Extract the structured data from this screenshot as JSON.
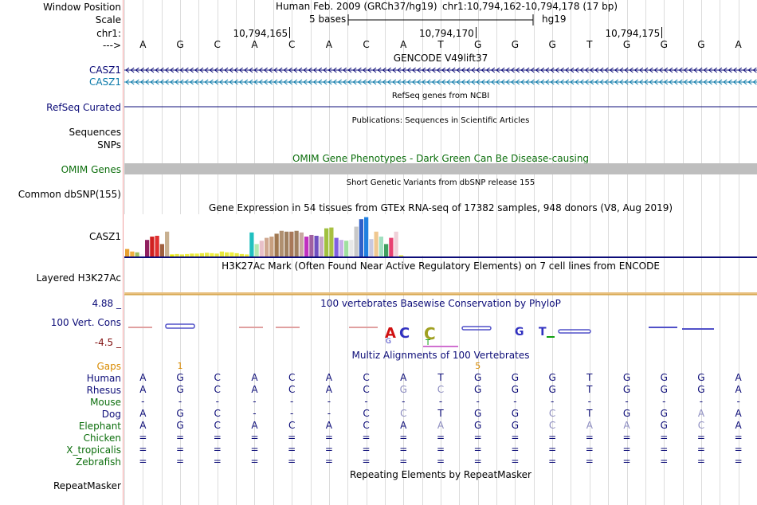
{
  "header": {
    "window_position_label": "Window Position",
    "assembly_text": "Human Feb. 2009 (GRCh37/hg19)",
    "position_text": "chr1:10,794,162-10,794,178 (17 bp)",
    "scale_label": "Scale",
    "scale_text": "5 bases",
    "scale_db": "hg19",
    "chrom_label": "chr1:",
    "arrow_label": "--->",
    "ticks": [
      "10,794,165",
      "10,794,170",
      "10,794,175"
    ],
    "bases": [
      "A",
      "G",
      "C",
      "A",
      "C",
      "A",
      "C",
      "A",
      "T",
      "G",
      "G",
      "G",
      "T",
      "G",
      "G",
      "G",
      "A"
    ]
  },
  "gencode": {
    "title": "GENCODE V49lift37",
    "gene1": "CASZ1",
    "gene2": "CASZ1",
    "gene1_color": "#0c0c78",
    "gene2_color": "#0c7aaa"
  },
  "refseq": {
    "title": "RefSeq genes from NCBI",
    "label": "RefSeq Curated"
  },
  "publications": {
    "title": "Publications: Sequences in Scientific Articles",
    "label_line1": "Sequences",
    "label_line2": "SNPs"
  },
  "omim": {
    "title": "OMIM Gene Phenotypes - Dark Green Can Be Disease-causing",
    "label": "OMIM Genes"
  },
  "dbsnp": {
    "title": "Short Genetic Variants from dbSNP release 155",
    "label": "Common dbSNP(155)"
  },
  "gtex": {
    "title": "Gene Expression in 54 tissues from GTEx RNA-seq of 17382 samples, 948 donors (V8, Aug 2019)",
    "label": "CASZ1",
    "max_value": 100,
    "values": [
      18,
      12,
      10,
      6,
      40,
      48,
      50,
      30,
      60,
      5,
      6,
      5,
      6,
      7,
      7,
      8,
      9,
      8,
      7,
      12,
      10,
      10,
      8,
      6,
      5,
      58,
      30,
      38,
      45,
      48,
      55,
      62,
      60,
      60,
      62,
      58,
      48,
      52,
      50,
      48,
      68,
      70,
      45,
      40,
      38,
      40,
      72,
      90,
      95,
      42,
      60,
      48,
      30,
      45,
      60,
      3
    ],
    "colors": [
      "#e8a030",
      "#f0b040",
      "#a0c060",
      "#f5f5f5",
      "#902060",
      "#d02020",
      "#e03030",
      "#a06040",
      "#c8b090",
      "#e8e800",
      "#e8e840",
      "#e8e840",
      "#f0f040",
      "#e8e840",
      "#f0f040",
      "#e8e840",
      "#e8e840",
      "#f0f040",
      "#e8e840",
      "#e8e840",
      "#e8e840",
      "#f0f040",
      "#e8e840",
      "#e8e840",
      "#f0f040",
      "#20c0c0",
      "#b0e8b0",
      "#e8c0c8",
      "#d0a890",
      "#c8a080",
      "#a07850",
      "#b09070",
      "#a08060",
      "#a87858",
      "#a08060",
      "#c8a8a0",
      "#c030c0",
      "#a060a0",
      "#7050c0",
      "#c8a8c8",
      "#a0c040",
      "#a8c040",
      "#8060e0",
      "#c8b0e8",
      "#a0e0a0",
      "#e8e8e8",
      "#c8c8c8",
      "#3060c8",
      "#2080e0",
      "#c8c8e0",
      "#f0c890",
      "#a0e0c0",
      "#40a060",
      "#e84070",
      "#f0d0d8",
      "#e8e840"
    ]
  },
  "h3k27ac": {
    "title": "H3K27Ac Mark (Often Found Near Active Regulatory Elements) on 7 cell lines from ENCODE",
    "label": "Layered H3K27Ac"
  },
  "conservation": {
    "title": "100 vertebrates Basewise Conservation by PhyloP",
    "label": "100 Vert. Cons",
    "max_label": "4.88 _",
    "min_label": "-4.5 _"
  },
  "multiz": {
    "title": "Multiz Alignments of 100 Vertebrates",
    "gaps_label": "Gaps",
    "gap_marks": [
      {
        "text": "1",
        "pos": 1.5
      },
      {
        "text": "5",
        "pos": 9.5
      }
    ],
    "species": [
      {
        "name": "Human",
        "color": "#0c0c78",
        "bases": [
          "A",
          "G",
          "C",
          "A",
          "C",
          "A",
          "C",
          "A",
          "T",
          "G",
          "G",
          "G",
          "T",
          "G",
          "G",
          "G",
          "A"
        ],
        "faded": []
      },
      {
        "name": "Rhesus",
        "color": "#0c0c78",
        "bases": [
          "A",
          "G",
          "C",
          "A",
          "C",
          "A",
          "C",
          "G",
          "C",
          "G",
          "G",
          "G",
          "T",
          "G",
          "G",
          "G",
          "A"
        ],
        "faded": [
          7,
          8
        ]
      },
      {
        "name": "Mouse",
        "color": "#0c6e0c",
        "bases": [
          "-",
          "-",
          "-",
          "-",
          "-",
          "-",
          "-",
          "-",
          "-",
          "-",
          "-",
          "-",
          "-",
          "-",
          "-",
          "-",
          "-"
        ],
        "faded": []
      },
      {
        "name": "Dog",
        "color": "#0c0c78",
        "bases": [
          "A",
          "G",
          "C",
          "-",
          "-",
          "-",
          "C",
          "C",
          "T",
          "G",
          "G",
          "C",
          "T",
          "G",
          "G",
          "A",
          "A"
        ],
        "faded": [
          7,
          11,
          15
        ]
      },
      {
        "name": "Elephant",
        "color": "#0c6e0c",
        "bases": [
          "A",
          "G",
          "C",
          "A",
          "C",
          "A",
          "C",
          "A",
          "A",
          "G",
          "G",
          "C",
          "A",
          "A",
          "G",
          "C",
          "A"
        ],
        "faded": [
          8,
          11,
          12,
          13,
          15
        ]
      },
      {
        "name": "Chicken",
        "color": "#0c6e0c",
        "bases": [
          "=",
          "=",
          "=",
          "=",
          "=",
          "=",
          "=",
          "=",
          "=",
          "=",
          "=",
          "=",
          "=",
          "=",
          "=",
          "=",
          "="
        ],
        "faded": []
      },
      {
        "name": "X_tropicalis",
        "color": "#0c6e0c",
        "bases": [
          "=",
          "=",
          "=",
          "=",
          "=",
          "=",
          "=",
          "=",
          "=",
          "=",
          "=",
          "=",
          "=",
          "=",
          "=",
          "=",
          "="
        ],
        "faded": []
      },
      {
        "name": "Zebrafish",
        "color": "#0c6e0c",
        "bases": [
          "=",
          "=",
          "=",
          "=",
          "=",
          "=",
          "=",
          "=",
          "=",
          "=",
          "=",
          "=",
          "=",
          "=",
          "=",
          "=",
          "="
        ],
        "faded": []
      }
    ]
  },
  "repeatmasker": {
    "title": "Repeating Elements by RepeatMasker",
    "label": "RepeatMasker"
  }
}
